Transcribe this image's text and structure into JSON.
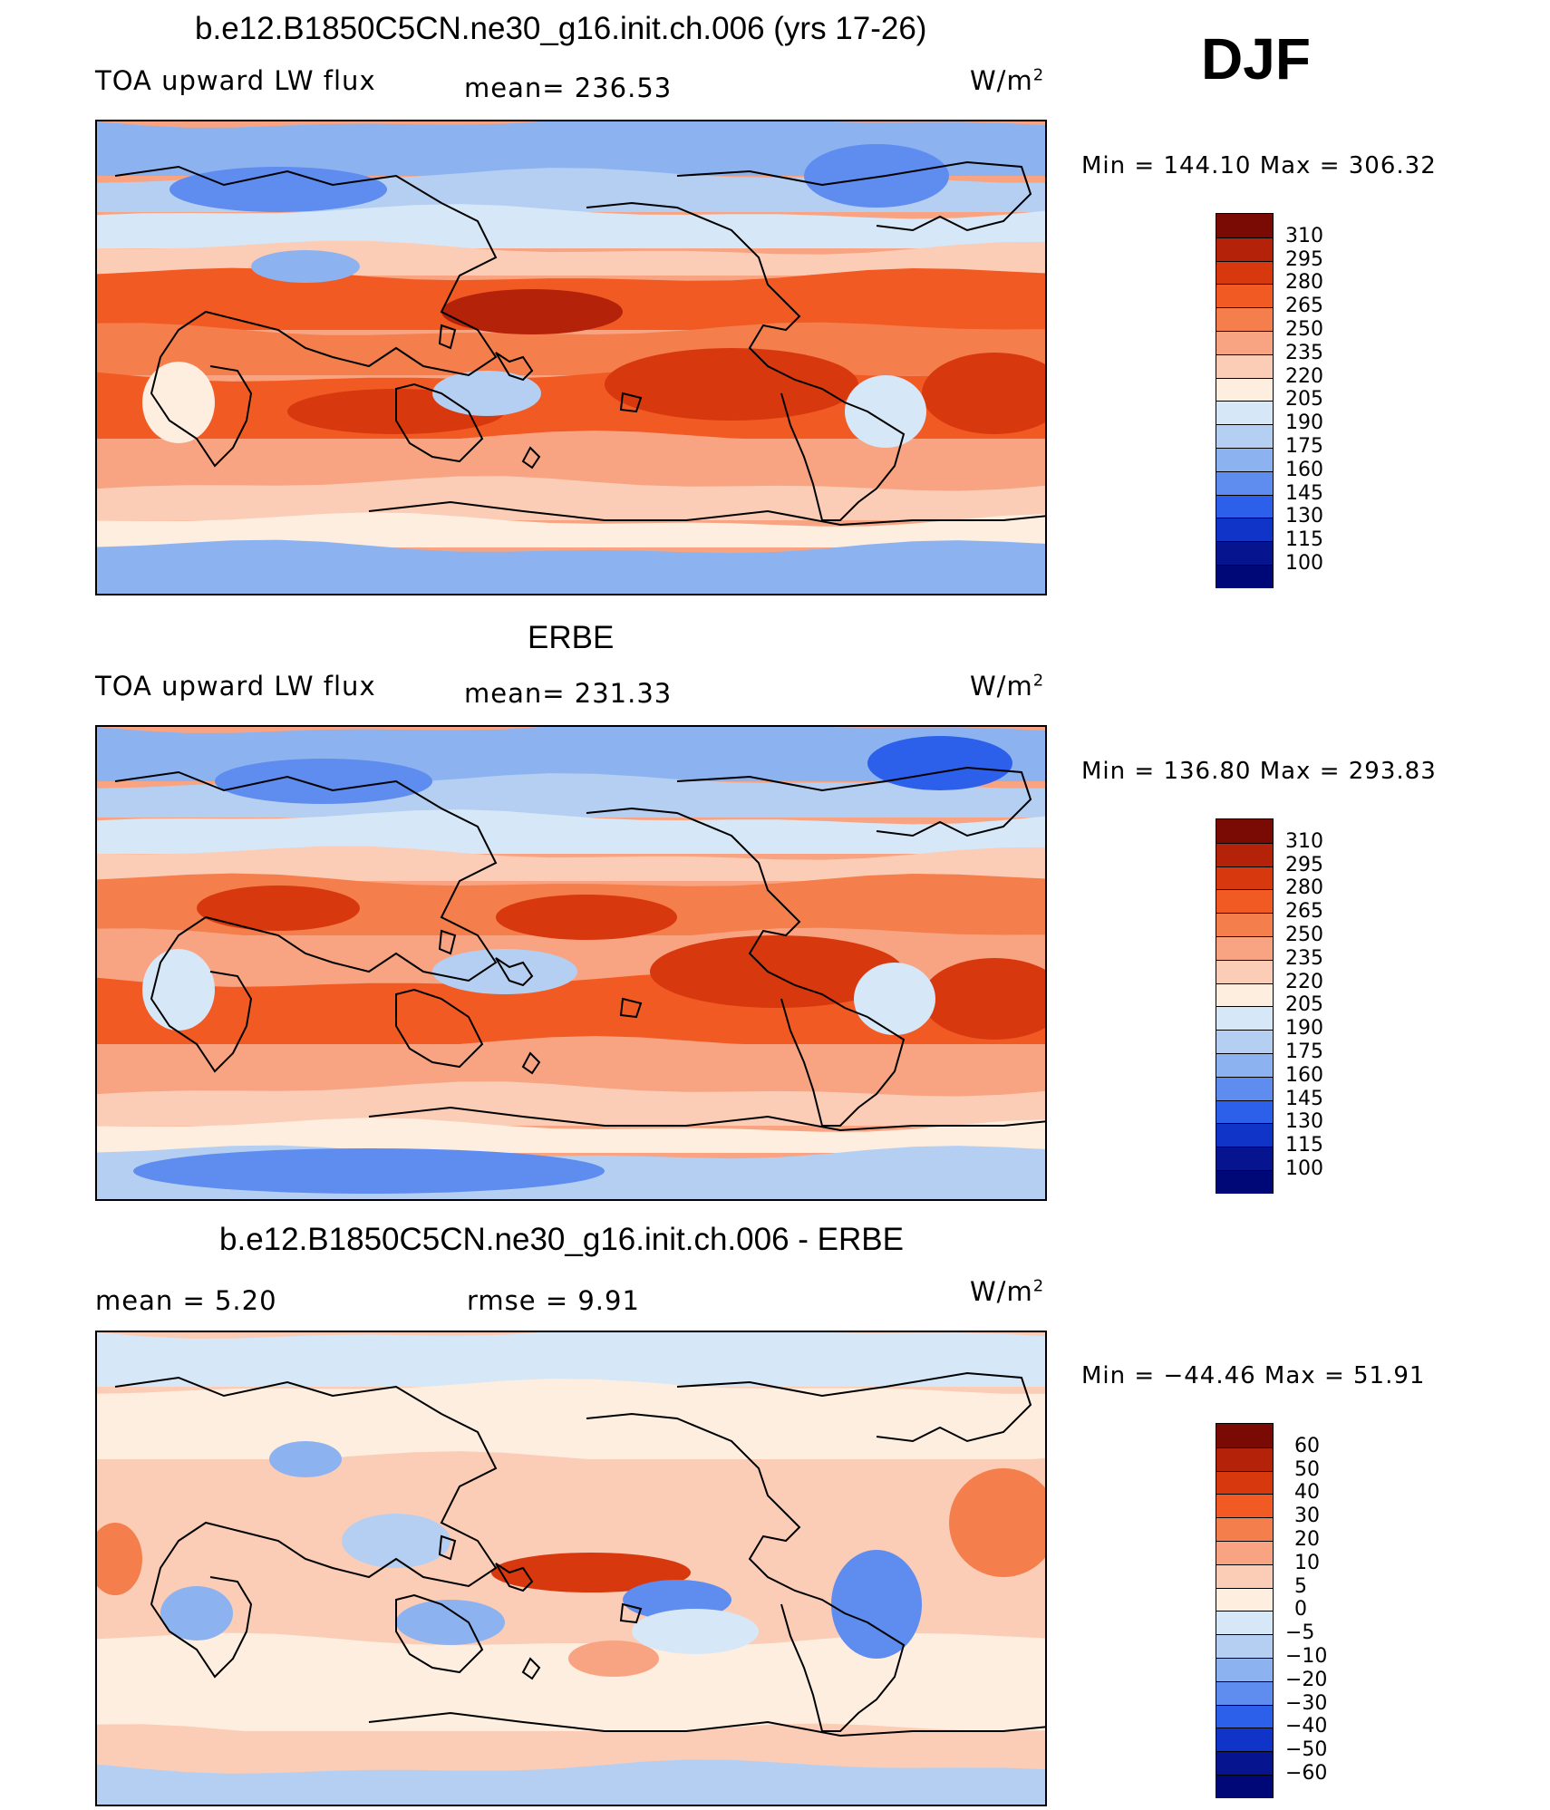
{
  "season": "DJF",
  "panels": [
    {
      "title": "b.e12.B1850C5CN.ne30_g16.init.ch.006 (yrs 17-26)",
      "left_label": "TOA upward LW flux",
      "mid_label": "mean=  236.53",
      "units": "W/m",
      "units_sup": "2",
      "minmax": "Min  =  144.10  Max  =  306.32"
    },
    {
      "title": "ERBE",
      "left_label": "TOA upward LW flux",
      "mid_label": "mean=  231.33",
      "units": "W/m",
      "units_sup": "2",
      "minmax": "Min  =  136.80  Max  =  293.83"
    },
    {
      "title": "b.e12.B1850C5CN.ne30_g16.init.ch.006 - ERBE",
      "left_label": "mean  =     5.20",
      "mid_label": "rmse  =     9.91",
      "units": "W/m",
      "units_sup": "2",
      "minmax": "Min  =  −44.46  Max  =    51.91"
    }
  ],
  "colorbars": [
    {
      "labels": [
        "310",
        "295",
        "280",
        "265",
        "250",
        "235",
        "220",
        "205",
        "190",
        "175",
        "160",
        "145",
        "130",
        "115",
        "100"
      ],
      "colors": [
        "#7a0a04",
        "#b5220a",
        "#d8380e",
        "#f25a24",
        "#f47e4c",
        "#f8a482",
        "#fbcdb6",
        "#fdeee0",
        "#d6e7f8",
        "#b5cff2",
        "#8cb3f0",
        "#5e8cef",
        "#2d60ea",
        "#1034c7",
        "#06158f",
        "#000878"
      ]
    },
    {
      "labels": [
        "310",
        "295",
        "280",
        "265",
        "250",
        "235",
        "220",
        "205",
        "190",
        "175",
        "160",
        "145",
        "130",
        "115",
        "100"
      ],
      "colors": [
        "#7a0a04",
        "#b5220a",
        "#d8380e",
        "#f25a24",
        "#f47e4c",
        "#f8a482",
        "#fbcdb6",
        "#fdeee0",
        "#d6e7f8",
        "#b5cff2",
        "#8cb3f0",
        "#5e8cef",
        "#2d60ea",
        "#1034c7",
        "#06158f",
        "#000878"
      ]
    },
    {
      "labels": [
        "60",
        "50",
        "40",
        "30",
        "20",
        "10",
        "5",
        "0",
        "−5",
        "−10",
        "−20",
        "−30",
        "−40",
        "−50",
        "−60"
      ],
      "colors": [
        "#7a0a04",
        "#b5220a",
        "#d8380e",
        "#f25a24",
        "#f47e4c",
        "#f8a482",
        "#fbcdb6",
        "#fdeee0",
        "#d6e7f8",
        "#b5cff2",
        "#8cb3f0",
        "#5e8cef",
        "#2d60ea",
        "#1034c7",
        "#06158f",
        "#000878"
      ]
    }
  ],
  "chart_data": [
    {
      "type": "heatmap",
      "title": "b.e12.B1850C5CN.ne30_g16.init.ch.006 (yrs 17-26)",
      "variable": "TOA upward LW flux",
      "units": "W/m2",
      "mean": 236.53,
      "min": 144.1,
      "max": 306.32,
      "contour_levels": [
        100,
        115,
        130,
        145,
        160,
        175,
        190,
        205,
        220,
        235,
        250,
        265,
        280,
        295,
        310
      ]
    },
    {
      "type": "heatmap",
      "title": "ERBE",
      "variable": "TOA upward LW flux",
      "units": "W/m2",
      "mean": 231.33,
      "min": 136.8,
      "max": 293.83,
      "contour_levels": [
        100,
        115,
        130,
        145,
        160,
        175,
        190,
        205,
        220,
        235,
        250,
        265,
        280,
        295,
        310
      ]
    },
    {
      "type": "heatmap",
      "title": "b.e12.B1850C5CN.ne30_g16.init.ch.006 - ERBE",
      "units": "W/m2",
      "mean": 5.2,
      "rmse": 9.91,
      "min": -44.46,
      "max": 51.91,
      "contour_levels": [
        -60,
        -50,
        -40,
        -30,
        -20,
        -10,
        -5,
        0,
        5,
        10,
        20,
        30,
        40,
        50,
        60
      ]
    }
  ]
}
